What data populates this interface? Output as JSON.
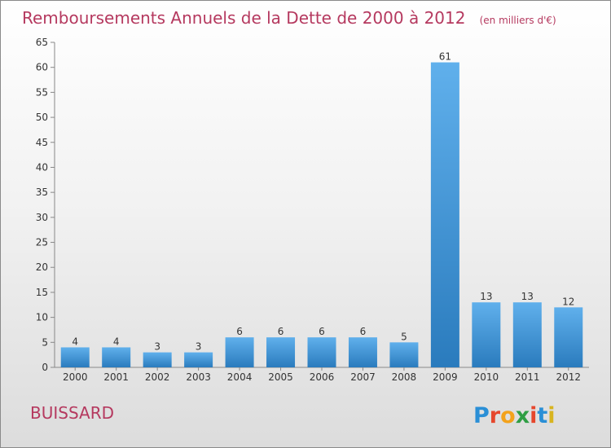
{
  "title": "Remboursements Annuels de la Dette de 2000 à 2012",
  "unit": "(en milliers d'€)",
  "commune": "BUISSARD",
  "logo": {
    "letters": [
      "P",
      "r",
      "o",
      "x",
      "i",
      "t",
      "i"
    ],
    "colors": [
      "#2a8fd6",
      "#e6462c",
      "#f3a21b",
      "#2f9e44",
      "#e6462c",
      "#2a8fd6",
      "#d8b41f"
    ]
  },
  "colors": {
    "bar_top": "#60b0ec",
    "bar_bottom": "#2a7bbd",
    "title": "#b5395f"
  },
  "chart_data": {
    "type": "bar",
    "categories": [
      "2000",
      "2001",
      "2002",
      "2003",
      "2004",
      "2005",
      "2006",
      "2007",
      "2008",
      "2009",
      "2010",
      "2011",
      "2012"
    ],
    "values": [
      4,
      4,
      3,
      3,
      6,
      6,
      6,
      6,
      5,
      61,
      13,
      13,
      12
    ],
    "data_labels": [
      "4",
      "4",
      "3",
      "3",
      "6",
      "6",
      "6",
      "6",
      "5",
      "61",
      "13",
      "13",
      "12"
    ],
    "ylim": [
      0,
      65
    ],
    "yticks": [
      0,
      5,
      10,
      15,
      20,
      25,
      30,
      35,
      40,
      45,
      50,
      55,
      60,
      65
    ],
    "grid": false,
    "legend": "none"
  }
}
